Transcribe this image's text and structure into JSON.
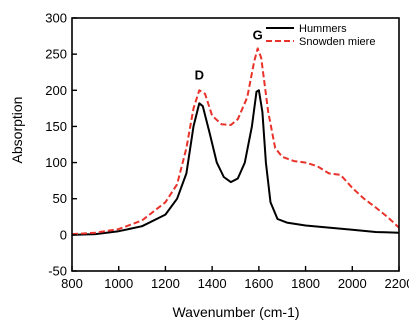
{
  "chart_data": {
    "type": "line",
    "title": "",
    "xlabel": "Wavenumber (cm-1)",
    "ylabel": "Absorption",
    "xlim": [
      800,
      2200
    ],
    "ylim": [
      -50,
      300
    ],
    "x_ticks": [
      "800",
      "1000",
      "1200",
      "1400",
      "1600",
      "1800",
      "2000",
      "2200"
    ],
    "y_ticks": [
      "-50",
      "0",
      "50",
      "100",
      "150",
      "200",
      "250",
      "300"
    ],
    "grid": false,
    "legend_position": "top-right",
    "series": [
      {
        "name": "Hummers",
        "color": "#000000",
        "style": "solid",
        "points": [
          [
            800,
            0
          ],
          [
            900,
            1
          ],
          [
            1000,
            5
          ],
          [
            1100,
            12
          ],
          [
            1200,
            28
          ],
          [
            1250,
            50
          ],
          [
            1290,
            85
          ],
          [
            1320,
            150
          ],
          [
            1345,
            182
          ],
          [
            1360,
            178
          ],
          [
            1390,
            140
          ],
          [
            1420,
            100
          ],
          [
            1450,
            80
          ],
          [
            1480,
            73
          ],
          [
            1510,
            78
          ],
          [
            1540,
            100
          ],
          [
            1570,
            150
          ],
          [
            1590,
            198
          ],
          [
            1600,
            200
          ],
          [
            1615,
            170
          ],
          [
            1630,
            100
          ],
          [
            1650,
            45
          ],
          [
            1680,
            22
          ],
          [
            1720,
            17
          ],
          [
            1800,
            13
          ],
          [
            1900,
            10
          ],
          [
            2000,
            7
          ],
          [
            2100,
            4
          ],
          [
            2200,
            3
          ]
        ]
      },
      {
        "name": "Snowden miere",
        "color": "#e8322a",
        "style": "dashed",
        "points": [
          [
            800,
            1
          ],
          [
            900,
            3
          ],
          [
            1000,
            8
          ],
          [
            1100,
            20
          ],
          [
            1200,
            45
          ],
          [
            1250,
            70
          ],
          [
            1290,
            120
          ],
          [
            1320,
            175
          ],
          [
            1345,
            200
          ],
          [
            1370,
            195
          ],
          [
            1400,
            165
          ],
          [
            1440,
            153
          ],
          [
            1480,
            152
          ],
          [
            1510,
            160
          ],
          [
            1550,
            190
          ],
          [
            1580,
            240
          ],
          [
            1595,
            258
          ],
          [
            1610,
            245
          ],
          [
            1640,
            170
          ],
          [
            1670,
            120
          ],
          [
            1700,
            108
          ],
          [
            1750,
            102
          ],
          [
            1800,
            100
          ],
          [
            1850,
            95
          ],
          [
            1900,
            85
          ],
          [
            1950,
            83
          ],
          [
            2000,
            65
          ],
          [
            2050,
            50
          ],
          [
            2100,
            38
          ],
          [
            2150,
            25
          ],
          [
            2200,
            10
          ]
        ]
      }
    ],
    "annotations": [
      {
        "text": "D",
        "x": 1345,
        "y": 215
      },
      {
        "text": "G",
        "x": 1595,
        "y": 270
      }
    ]
  }
}
